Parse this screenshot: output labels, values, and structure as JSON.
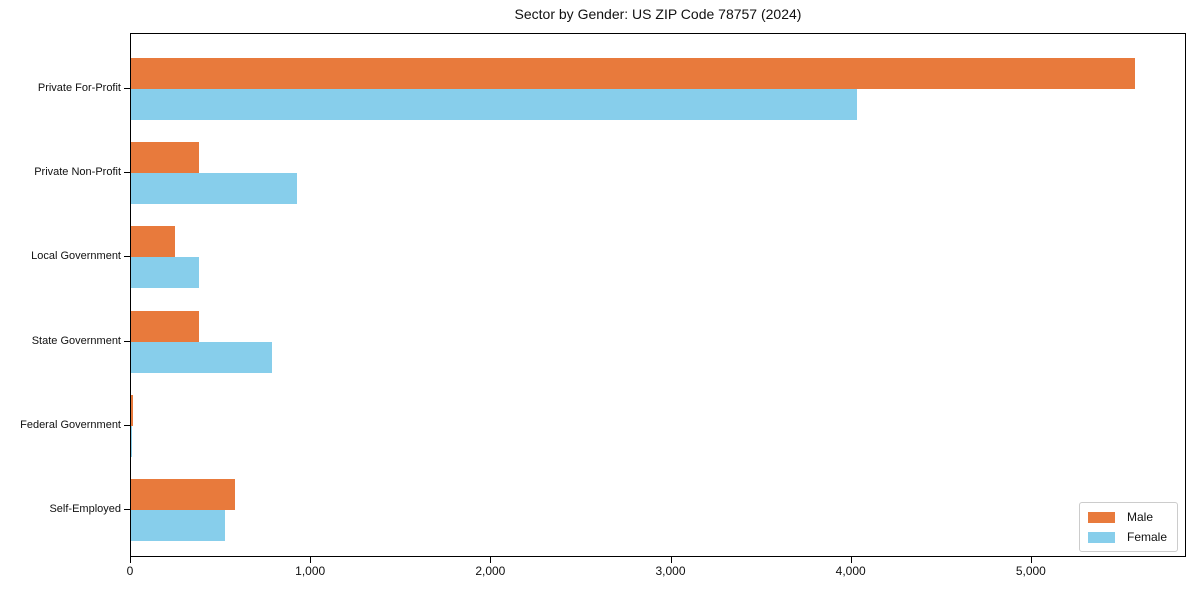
{
  "title": "Sector by Gender: US ZIP Code 78757 (2024)",
  "legend": {
    "male_label": "Male",
    "female_label": "Female"
  },
  "chart_data": {
    "type": "bar",
    "orientation": "horizontal",
    "title": "Sector by Gender: US ZIP Code 78757 (2024)",
    "categories": [
      "Private For-Profit",
      "Private Non-Profit",
      "Local Government",
      "State Government",
      "Federal Government",
      "Self-Employed"
    ],
    "series": [
      {
        "name": "Male",
        "color": "#e87a3c",
        "values": [
          5570,
          375,
          245,
          380,
          12,
          575
        ]
      },
      {
        "name": "Female",
        "color": "#87ceeb",
        "values": [
          4030,
          920,
          380,
          785,
          8,
          520
        ]
      }
    ],
    "xlabel": "",
    "ylabel": "",
    "xlim": [
      0,
      5850
    ],
    "xticks": [
      0,
      1000,
      2000,
      3000,
      4000,
      5000
    ],
    "xtick_labels": [
      "0",
      "1,000",
      "2,000",
      "3,000",
      "4,000",
      "5,000"
    ],
    "grid": false,
    "legend_position": "lower right"
  }
}
